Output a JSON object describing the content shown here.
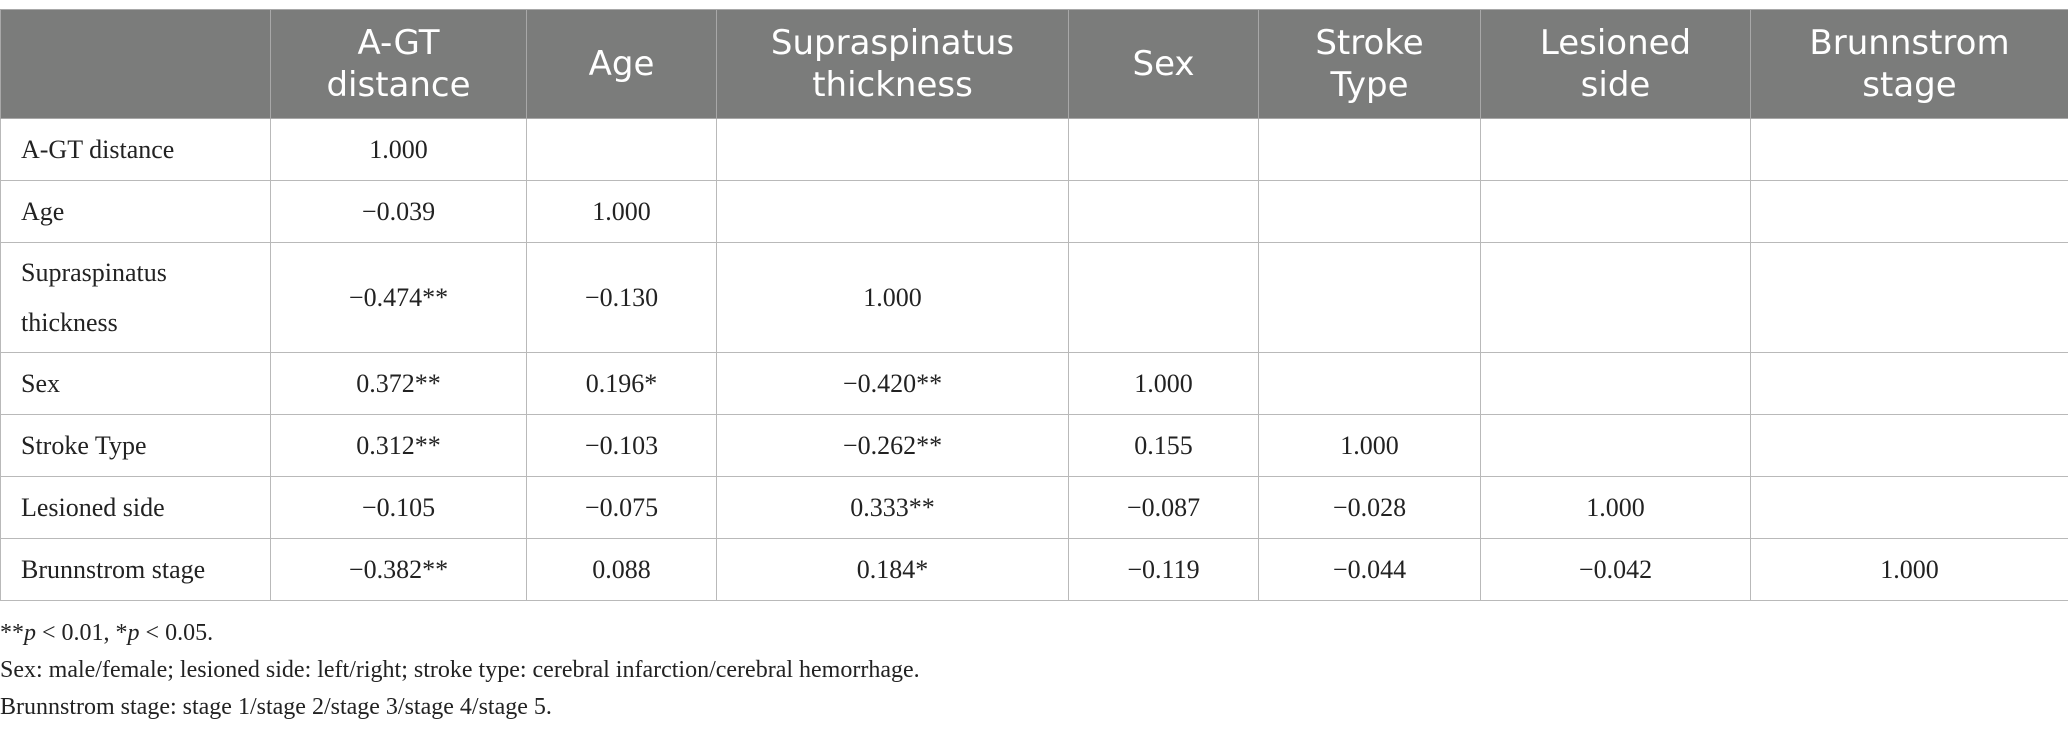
{
  "table": {
    "columns": [
      "",
      "A-GT distance",
      "Age",
      "Supraspinatus thickness",
      "Sex",
      "Stroke Type",
      "Lesioned side",
      "Brunnstrom stage"
    ],
    "rows": [
      {
        "label": "A-GT distance",
        "cells": [
          "1.000",
          "",
          "",
          "",
          "",
          "",
          ""
        ]
      },
      {
        "label": "Age",
        "cells": [
          "−0.039",
          "1.000",
          "",
          "",
          "",
          "",
          ""
        ]
      },
      {
        "label": "Supraspinatus thickness",
        "cells": [
          "−0.474**",
          "−0.130",
          "1.000",
          "",
          "",
          "",
          ""
        ]
      },
      {
        "label": "Sex",
        "cells": [
          "0.372**",
          "0.196*",
          "−0.420**",
          "1.000",
          "",
          "",
          ""
        ]
      },
      {
        "label": "Stroke Type",
        "cells": [
          "0.312**",
          "−0.103",
          "−0.262**",
          "0.155",
          "1.000",
          "",
          ""
        ]
      },
      {
        "label": "Lesioned side",
        "cells": [
          "−0.105",
          "−0.075",
          "0.333**",
          "−0.087",
          "−0.028",
          "1.000",
          ""
        ]
      },
      {
        "label": "Brunnstrom stage",
        "cells": [
          "−0.382**",
          "0.088",
          "0.184*",
          "−0.119",
          "−0.044",
          "−0.042",
          "1.000"
        ]
      }
    ]
  },
  "footnotes": {
    "significance": {
      "p1_prefix": "**",
      "p1_var": "p",
      "p1_rest": " < 0.01, *",
      "p2_var": "p",
      "p2_rest": " < 0.05."
    },
    "line2": "Sex: male/female; lesioned side: left/right; stroke type: cerebral infarction/cerebral hemorrhage.",
    "line3": "Brunnstrom stage: stage 1/stage 2/stage 3/stage 4/stage 5."
  }
}
